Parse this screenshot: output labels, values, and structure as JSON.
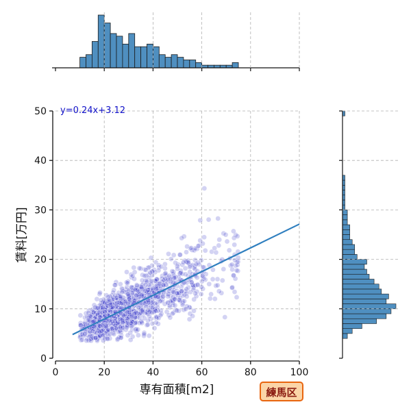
{
  "chart_data": {
    "type": "scatter",
    "title": "",
    "xlabel": "専有面積[m2]",
    "ylabel": "賃料[万円]",
    "xlim": [
      0,
      100
    ],
    "ylim": [
      0,
      50
    ],
    "x_ticks": [
      0,
      20,
      40,
      60,
      80,
      100
    ],
    "y_ticks": [
      0,
      10,
      20,
      30,
      40,
      50
    ],
    "grid": true,
    "grid_style": "dashed",
    "point_color": "#3535c8",
    "line_color": "#2f7fbf",
    "hist_color": "#4f8fc0",
    "regression": {
      "label": "y=0.24x+3.12",
      "slope": 0.24,
      "intercept": 3.12,
      "x_range": [
        7,
        100
      ]
    },
    "scatter_trend": {
      "x_range": [
        8,
        98
      ],
      "approx_points": 1500
    },
    "x_histogram": {
      "bin_width": 2.5,
      "bin_start": 7.5,
      "counts": [
        0,
        4,
        5,
        10,
        20,
        17,
        13,
        12,
        9,
        13,
        8,
        8,
        9,
        8,
        5,
        4,
        5,
        4,
        3,
        3,
        2,
        1,
        1,
        1,
        1,
        1,
        2
      ]
    },
    "y_histogram": {
      "bin_width": 1,
      "bin_start": 4,
      "counts": [
        2,
        4,
        8,
        14,
        18,
        20,
        22,
        18,
        19,
        16,
        15,
        13,
        11,
        10,
        9,
        10,
        6,
        5,
        5,
        4,
        3,
        3,
        3,
        2,
        2,
        2,
        1,
        1,
        1,
        1,
        1,
        1,
        1,
        0,
        0,
        0,
        0,
        0,
        0,
        0,
        0,
        0,
        0,
        0,
        0,
        1
      ]
    },
    "annotation": "練馬区"
  },
  "colors": {
    "badge_bg": "#fbd5a8",
    "badge_border": "#e8650f",
    "axis": "#111111",
    "grid": "#b0b0b0"
  }
}
